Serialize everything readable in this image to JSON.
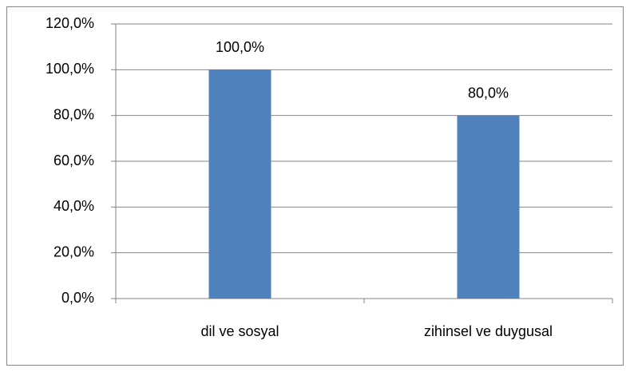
{
  "chart_data": {
    "type": "bar",
    "categories": [
      "dil ve sosyal",
      "zihinsel ve duygusal"
    ],
    "values": [
      100,
      80
    ],
    "value_labels": [
      "100,0%",
      "80,0%"
    ],
    "color": "#4f81bd",
    "ylim": [
      0,
      120
    ],
    "yticks": [
      {
        "value": 0,
        "label": "0,0%"
      },
      {
        "value": 20,
        "label": "20,0%"
      },
      {
        "value": 40,
        "label": "40,0%"
      },
      {
        "value": 60,
        "label": "60,0%"
      },
      {
        "value": 80,
        "label": "80,0%"
      },
      {
        "value": 100,
        "label": "100,0%"
      },
      {
        "value": 120,
        "label": "120,0%"
      }
    ],
    "grid": true
  }
}
